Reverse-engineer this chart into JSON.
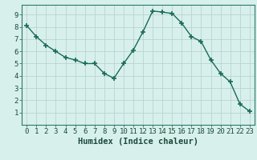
{
  "x": [
    0,
    1,
    2,
    3,
    4,
    5,
    6,
    7,
    8,
    9,
    10,
    11,
    12,
    13,
    14,
    15,
    16,
    17,
    18,
    19,
    20,
    21,
    22,
    23
  ],
  "y": [
    8.1,
    7.2,
    6.5,
    6.0,
    5.5,
    5.3,
    5.0,
    5.0,
    4.2,
    3.8,
    5.0,
    6.1,
    7.6,
    9.3,
    9.2,
    9.1,
    8.3,
    7.2,
    6.8,
    5.3,
    4.2,
    3.5,
    1.7,
    1.1
  ],
  "line_color": "#1a6b5a",
  "marker": "+",
  "marker_size": 5,
  "marker_lw": 1.2,
  "xlabel": "Humidex (Indice chaleur)",
  "xlim": [
    -0.5,
    23.5
  ],
  "ylim": [
    0,
    9.8
  ],
  "yticks": [
    1,
    2,
    3,
    4,
    5,
    6,
    7,
    8,
    9
  ],
  "xticks": [
    0,
    1,
    2,
    3,
    4,
    5,
    6,
    7,
    8,
    9,
    10,
    11,
    12,
    13,
    14,
    15,
    16,
    17,
    18,
    19,
    20,
    21,
    22,
    23
  ],
  "bg_color": "#d8f0ec",
  "plot_bg_color": "#d8f0ec",
  "grid_color": "#b8d4ce",
  "spine_color": "#2a7a68",
  "xlabel_fontsize": 7.5,
  "tick_fontsize": 6.5,
  "line_width": 1.0
}
